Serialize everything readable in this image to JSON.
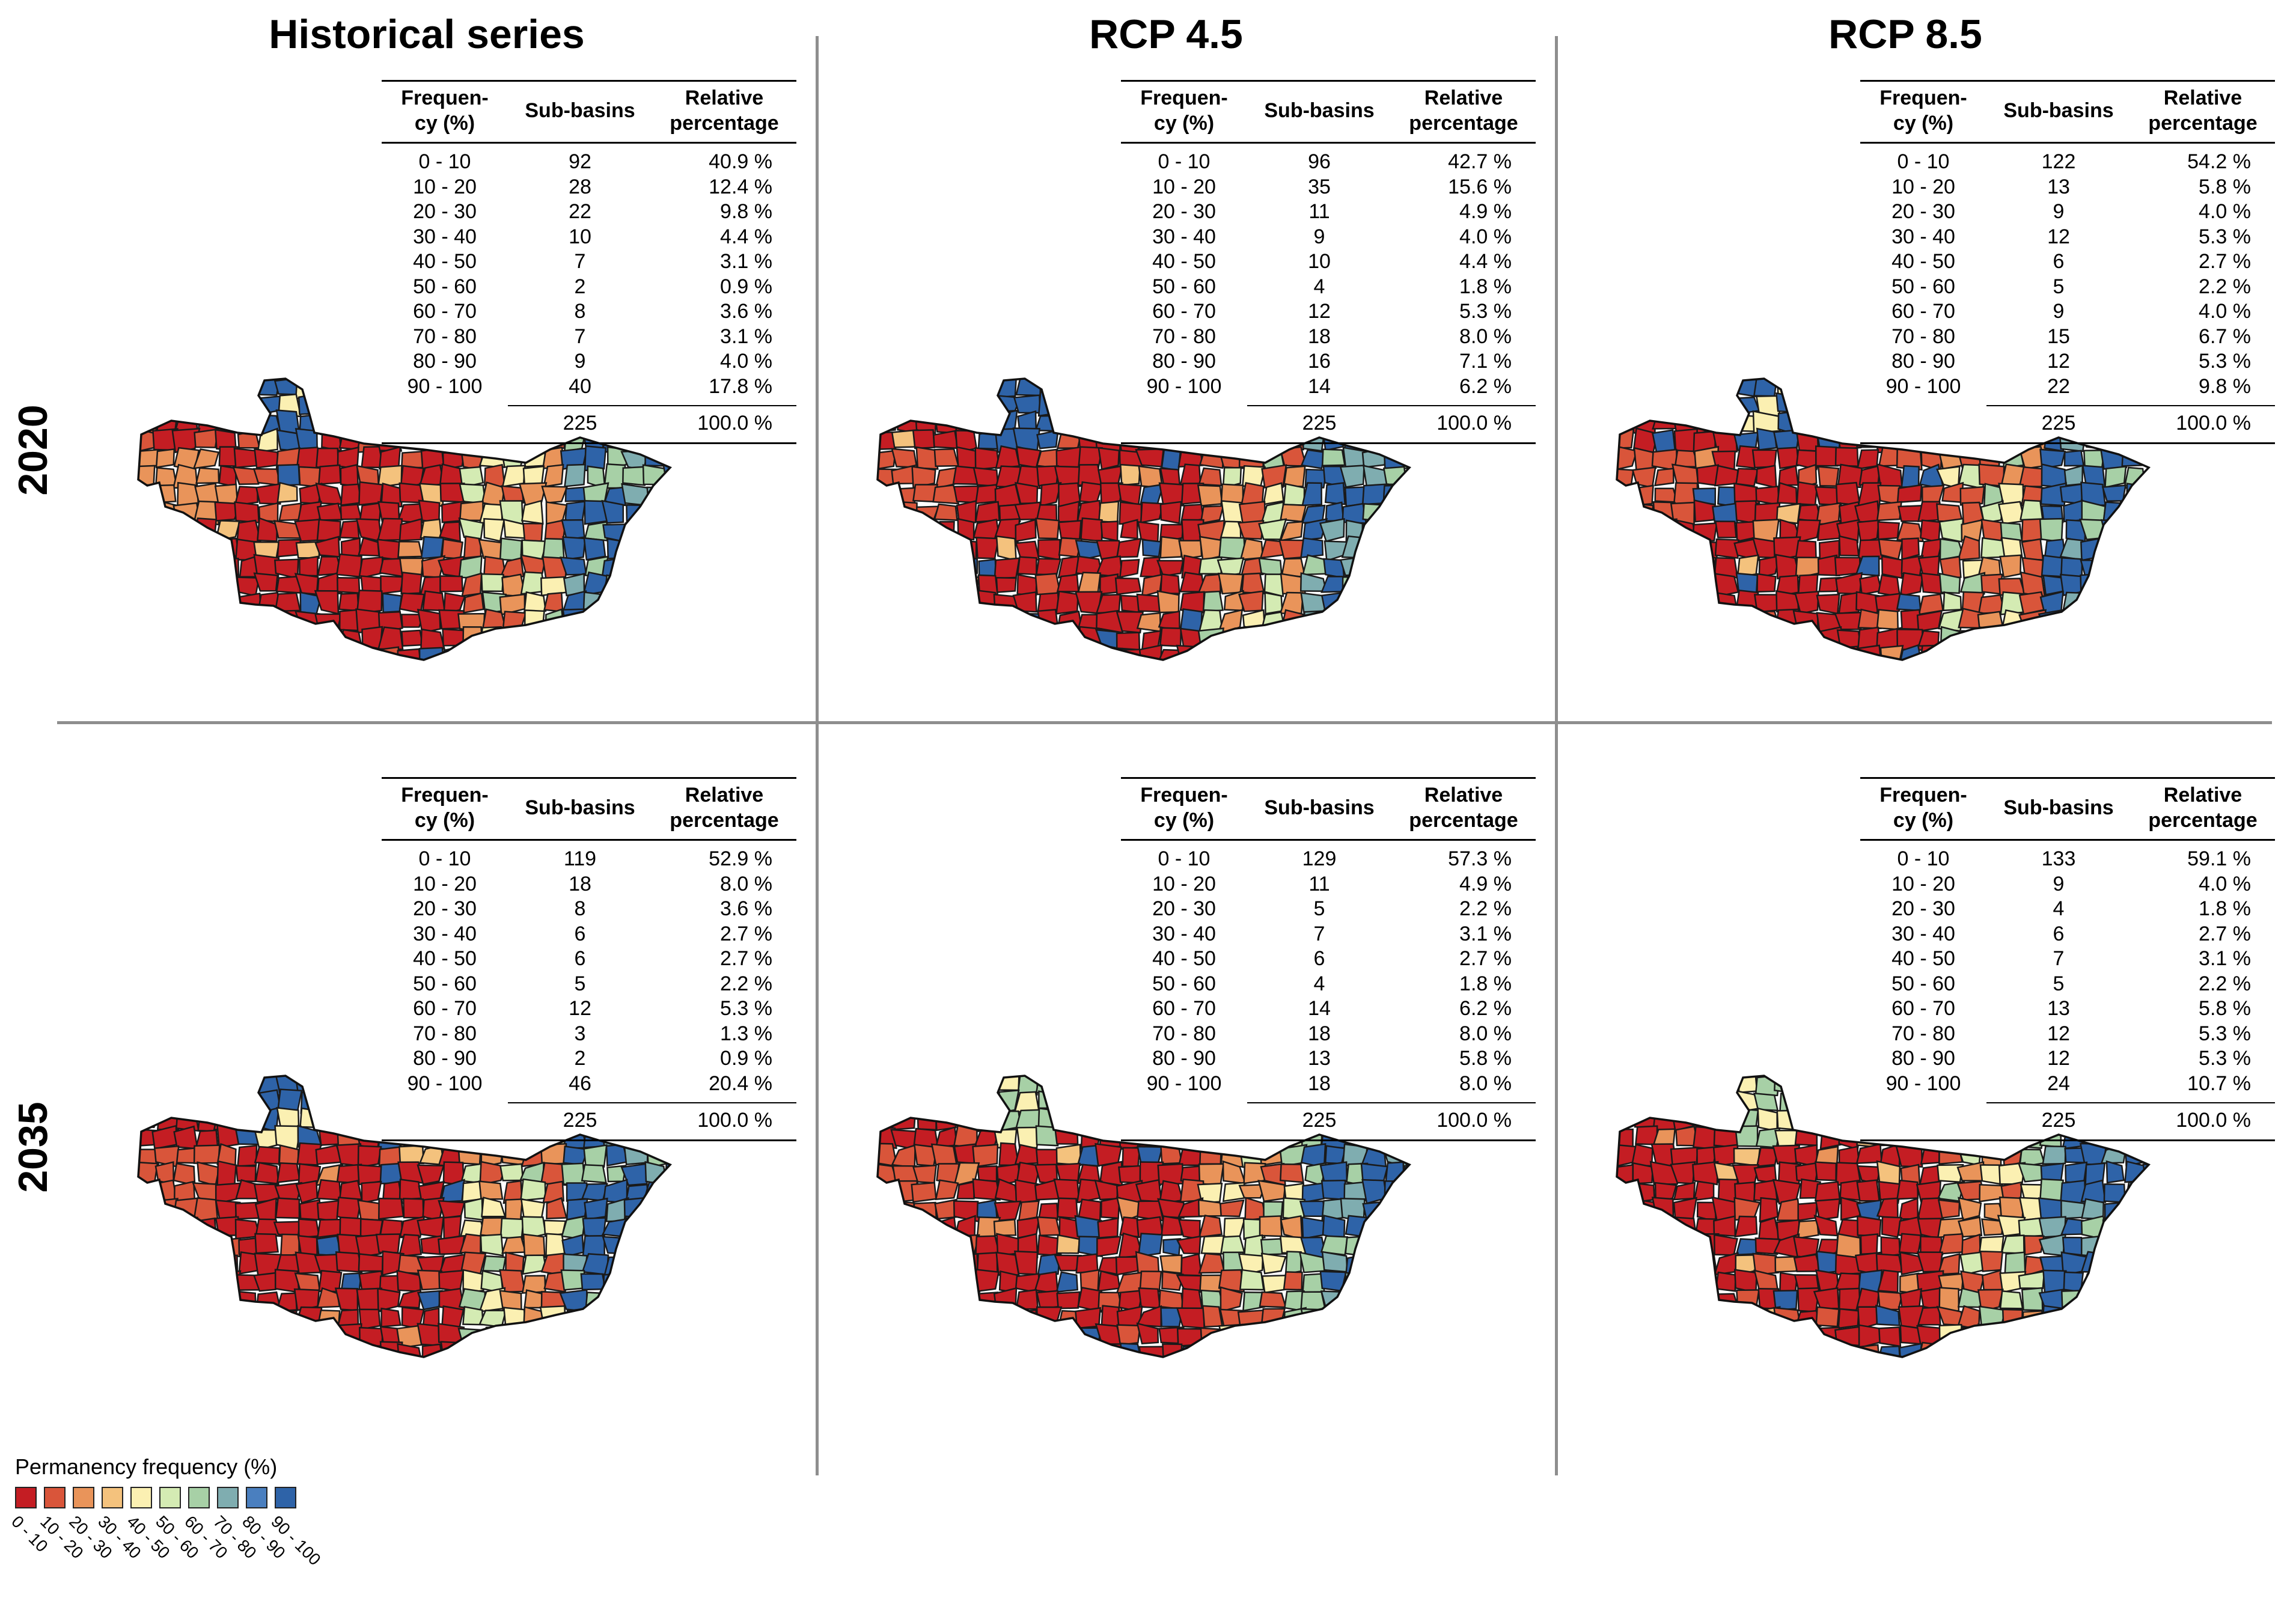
{
  "columns": [
    "Historical series",
    "RCP 4.5",
    "RCP 8.5"
  ],
  "rows": [
    "2020",
    "2035"
  ],
  "table_headers": {
    "frequency": [
      "Frequen-",
      "cy (%)"
    ],
    "sub_basins": "Sub-basins",
    "relative": [
      "Relative",
      "percentage"
    ]
  },
  "frequency_classes": [
    "0 - 10",
    "10 - 20",
    "20 - 30",
    "30 - 40",
    "40 - 50",
    "50 - 60",
    "60 - 70",
    "70 - 80",
    "80 - 90",
    "90 - 100"
  ],
  "panels": [
    {
      "row": "2020",
      "column": "Historical series",
      "counts": [
        92,
        28,
        22,
        10,
        7,
        2,
        8,
        7,
        9,
        40
      ],
      "percentages": [
        "40.9 %",
        "12.4 %",
        "9.8 %",
        "4.4 %",
        "3.1 %",
        "0.9 %",
        "3.6 %",
        "3.1 %",
        "4.0 %",
        "17.8 %"
      ],
      "total": "225",
      "total_pct": "100.0 %"
    },
    {
      "row": "2020",
      "column": "RCP 4.5",
      "counts": [
        96,
        35,
        11,
        9,
        10,
        4,
        12,
        18,
        16,
        14
      ],
      "percentages": [
        "42.7 %",
        "15.6 %",
        "4.9 %",
        "4.0 %",
        "4.4 %",
        "1.8 %",
        "5.3 %",
        "8.0 %",
        "7.1 %",
        "6.2 %"
      ],
      "total": "225",
      "total_pct": "100.0 %"
    },
    {
      "row": "2020",
      "column": "RCP 8.5",
      "counts": [
        122,
        13,
        9,
        12,
        6,
        5,
        9,
        15,
        12,
        22
      ],
      "percentages": [
        "54.2 %",
        "5.8 %",
        "4.0 %",
        "5.3 %",
        "2.7 %",
        "2.2 %",
        "4.0 %",
        "6.7 %",
        "5.3 %",
        "9.8 %"
      ],
      "total": "225",
      "total_pct": "100.0 %"
    },
    {
      "row": "2035",
      "column": "Historical series",
      "counts": [
        119,
        18,
        8,
        6,
        6,
        5,
        12,
        3,
        2,
        46
      ],
      "percentages": [
        "52.9 %",
        "8.0 %",
        "3.6 %",
        "2.7 %",
        "2.7 %",
        "2.2 %",
        "5.3 %",
        "1.3 %",
        "0.9 %",
        "20.4 %"
      ],
      "total": "225",
      "total_pct": "100.0 %"
    },
    {
      "row": "2035",
      "column": "RCP 4.5",
      "counts": [
        129,
        11,
        5,
        7,
        6,
        4,
        14,
        18,
        13,
        18
      ],
      "percentages": [
        "57.3 %",
        "4.9 %",
        "2.2 %",
        "3.1 %",
        "2.7 %",
        "1.8 %",
        "6.2 %",
        "8.0 %",
        "5.8 %",
        "8.0 %"
      ],
      "total": "225",
      "total_pct": "100.0 %"
    },
    {
      "row": "2035",
      "column": "RCP 8.5",
      "counts": [
        133,
        9,
        4,
        6,
        7,
        5,
        13,
        12,
        12,
        24
      ],
      "percentages": [
        "59.1 %",
        "4.0 %",
        "1.8 %",
        "2.7 %",
        "3.1 %",
        "2.2 %",
        "5.8 %",
        "5.3 %",
        "5.3 %",
        "10.7 %"
      ],
      "total": "225",
      "total_pct": "100.0 %"
    }
  ],
  "legend": {
    "title": "Permanency frequency (%)",
    "labels": [
      "0 - 10",
      "10 - 20",
      "20 - 30",
      "30 - 40",
      "40 - 50",
      "50 - 60",
      "60 - 70",
      "70 - 80",
      "80 - 90",
      "90 - 100"
    ],
    "colors": [
      "#c41d23",
      "#d9553a",
      "#e9945a",
      "#f4c27d",
      "#fbf0b2",
      "#d4ebb3",
      "#a7d0a6",
      "#7fadb0",
      "#4a7fbf",
      "#2e63a8"
    ]
  }
}
